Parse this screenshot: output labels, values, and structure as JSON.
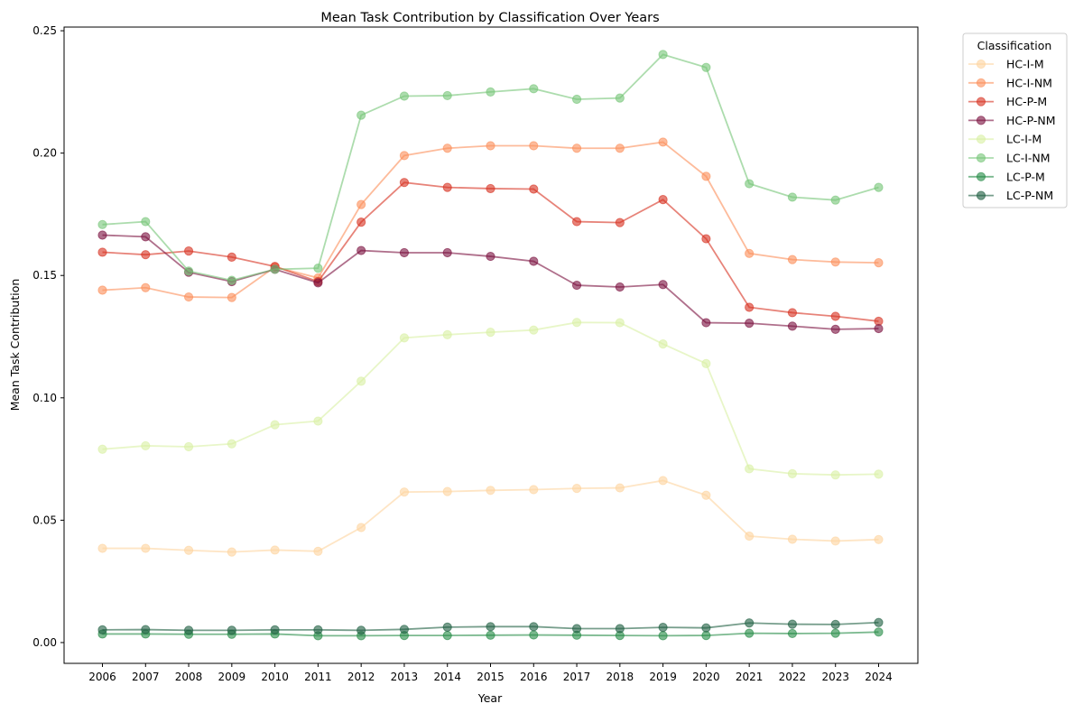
{
  "chart_data": {
    "type": "line",
    "title": "Mean Task Contribution by Classification Over Years",
    "xlabel": "Year",
    "ylabel": "Mean Task Contribution",
    "ylim": [
      -0.0085,
      0.2515
    ],
    "yticks": [
      0.0,
      0.05,
      0.1,
      0.15,
      0.2,
      0.25
    ],
    "ytick_labels": [
      "0.00",
      "0.05",
      "0.10",
      "0.15",
      "0.20",
      "0.25"
    ],
    "x": [
      "2006",
      "2007",
      "2008",
      "2009",
      "2010",
      "2011",
      "2012",
      "2013",
      "2014",
      "2015",
      "2016",
      "2017",
      "2018",
      "2019",
      "2020",
      "2021",
      "2022",
      "2023",
      "2024"
    ],
    "grid": false,
    "legend": {
      "title": "Classification",
      "placement": "outside-top-right"
    },
    "series": [
      {
        "name": "HC-I-M",
        "color": "#fdd49e",
        "values": [
          0.0385,
          0.0385,
          0.0377,
          0.037,
          0.0378,
          0.0373,
          0.047,
          0.0615,
          0.0617,
          0.0622,
          0.0625,
          0.063,
          0.0632,
          0.0662,
          0.0602,
          0.0435,
          0.0422,
          0.0415,
          0.0421
        ]
      },
      {
        "name": "HC-I-NM",
        "color": "#fc8d59",
        "values": [
          0.144,
          0.145,
          0.1412,
          0.141,
          0.1535,
          0.149,
          0.179,
          0.199,
          0.202,
          0.203,
          0.203,
          0.202,
          0.202,
          0.2045,
          0.1905,
          0.159,
          0.1565,
          0.1555,
          0.1552
        ]
      },
      {
        "name": "HC-P-M",
        "color": "#d7301f",
        "values": [
          0.1595,
          0.1585,
          0.16,
          0.1575,
          0.1537,
          0.1475,
          0.1718,
          0.188,
          0.186,
          0.1855,
          0.1853,
          0.172,
          0.1716,
          0.181,
          0.165,
          0.137,
          0.1348,
          0.1333,
          0.1313
        ]
      },
      {
        "name": "HC-P-NM",
        "color": "#7a0f3e",
        "values": [
          0.1665,
          0.1658,
          0.1513,
          0.1475,
          0.1525,
          0.147,
          0.1602,
          0.1593,
          0.1593,
          0.1578,
          0.1558,
          0.146,
          0.1453,
          0.1463,
          0.1307,
          0.1305,
          0.1293,
          0.128,
          0.1283
        ]
      },
      {
        "name": "LC-I-M",
        "color": "#d9f0a3",
        "values": [
          0.079,
          0.0804,
          0.08,
          0.0812,
          0.089,
          0.0905,
          0.1068,
          0.1245,
          0.1258,
          0.1268,
          0.1277,
          0.1308,
          0.1307,
          0.122,
          0.114,
          0.071,
          0.069,
          0.0685,
          0.0688
        ]
      },
      {
        "name": "LC-I-NM",
        "color": "#74c476",
        "values": [
          0.1708,
          0.172,
          0.1518,
          0.148,
          0.1525,
          0.153,
          0.2155,
          0.2233,
          0.2235,
          0.225,
          0.2263,
          0.222,
          0.2225,
          0.2403,
          0.235,
          0.1875,
          0.182,
          0.1808,
          0.186
        ]
      },
      {
        "name": "LC-P-M",
        "color": "#238b45",
        "values": [
          0.0035,
          0.0035,
          0.0034,
          0.0034,
          0.0035,
          0.0028,
          0.0028,
          0.0029,
          0.0029,
          0.003,
          0.0031,
          0.003,
          0.0029,
          0.0028,
          0.0029,
          0.0038,
          0.0037,
          0.0038,
          0.0043
        ]
      },
      {
        "name": "LC-P-NM",
        "color": "#1d5e40",
        "values": [
          0.0052,
          0.0053,
          0.005,
          0.005,
          0.0052,
          0.0052,
          0.005,
          0.0054,
          0.0063,
          0.0065,
          0.0065,
          0.0057,
          0.0057,
          0.0062,
          0.006,
          0.008,
          0.0075,
          0.0074,
          0.0082
        ]
      }
    ]
  }
}
